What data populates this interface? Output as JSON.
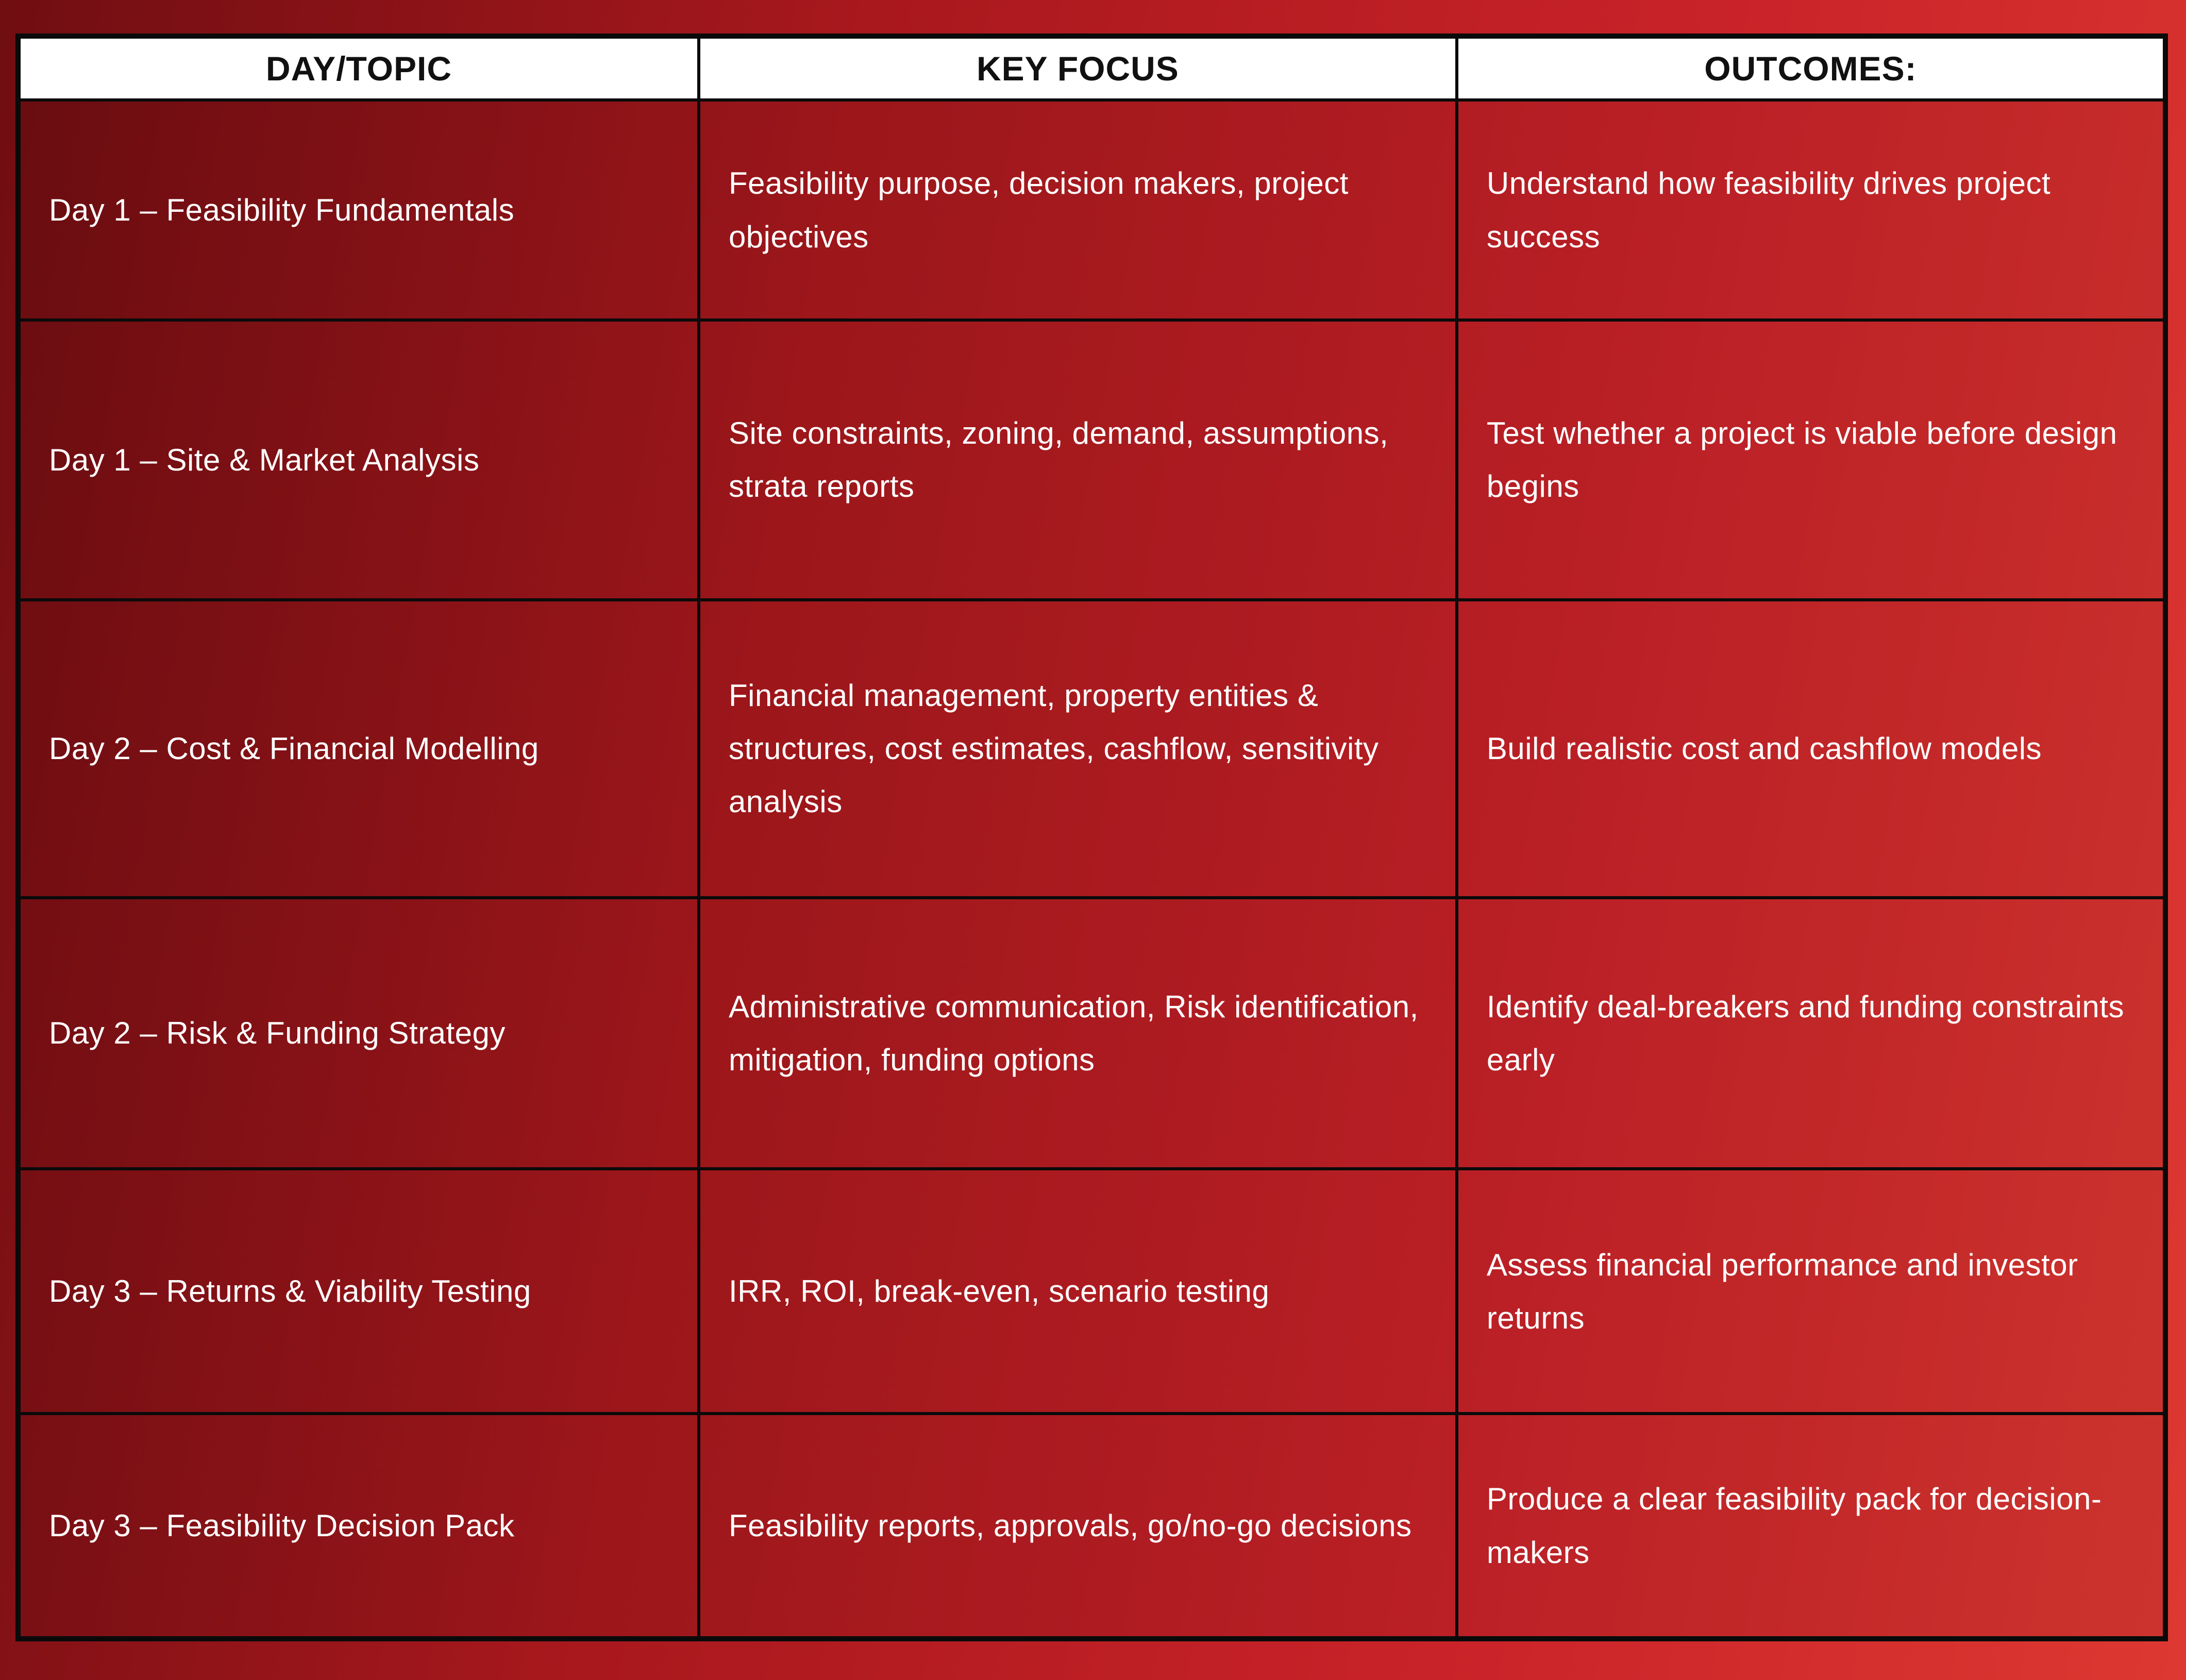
{
  "colors": {
    "bg_dark": "#700e12",
    "bg_mid": "#a8181d",
    "bg_bright": "#c92329",
    "bg_edge": "#de3832",
    "border_color": "#0a0a0a",
    "header_bg": "#ffffff",
    "header_text": "#111111",
    "cell_text": "#ffffff"
  },
  "table": {
    "headers": [
      "DAY/TOPIC",
      "KEY FOCUS",
      "OUTCOMES:"
    ],
    "rows": [
      {
        "day_topic": "Day 1 – Feasibility Fundamentals",
        "key_focus": "Feasibility purpose, decision makers, project objectives",
        "outcomes": "Understand how feasibility drives project success"
      },
      {
        "day_topic": "Day 1 – Site & Market Analysis",
        "key_focus": "Site constraints, zoning, demand, assumptions, strata reports",
        "outcomes": "Test whether a project is viable before design begins"
      },
      {
        "day_topic": "Day 2 – Cost & Financial Modelling",
        "key_focus": "Financial management, property entities & structures, cost estimates, cashflow, sensitivity analysis",
        "outcomes": "Build realistic cost and cashflow models"
      },
      {
        "day_topic": "Day 2 – Risk & Funding Strategy",
        "key_focus": "Administrative communication, Risk identification, mitigation, funding options",
        "outcomes": "Identify deal-breakers and funding constraints early"
      },
      {
        "day_topic": "Day 3 – Returns & Viability Testing",
        "key_focus": "IRR, ROI, break-even, scenario testing",
        "outcomes": "Assess financial performance and investor returns"
      },
      {
        "day_topic": "Day 3 – Feasibility Decision Pack",
        "key_focus": "Feasibility reports, approvals, go/no-go decisions",
        "outcomes": "Produce a clear feasibility pack for decision-makers"
      }
    ]
  }
}
